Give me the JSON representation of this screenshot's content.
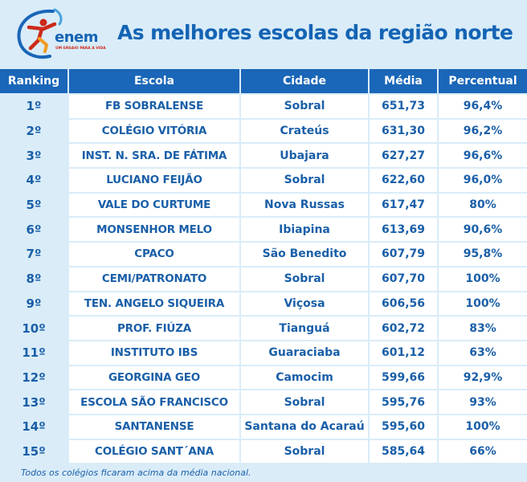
{
  "logo": {
    "icon": "enem-swoosh-figure-logo",
    "name": "enem",
    "tagline": "UM ENSAIO PARA A VIDA"
  },
  "title": "As melhores escolas da região norte",
  "table": {
    "headers": [
      "Ranking",
      "Escola",
      "Cidade",
      "Média",
      "Percentual"
    ],
    "rows": [
      [
        "1º",
        "FB SOBRALENSE",
        "Sobral",
        "651,73",
        "96,4%"
      ],
      [
        "2º",
        "COLÉGIO VITÓRIA",
        "Crateús",
        "631,30",
        "96,2%"
      ],
      [
        "3º",
        "INST. N. SRA. DE FÁTIMA",
        "Ubajara",
        "627,27",
        "96,6%"
      ],
      [
        "4º",
        "LUCIANO FEIJÃO",
        "Sobral",
        "622,60",
        "96,0%"
      ],
      [
        "5º",
        "VALE DO CURTUME",
        "Nova Russas",
        "617,47",
        "80%"
      ],
      [
        "6º",
        "MONSENHOR MELO",
        "Ibiapina",
        "613,69",
        "90,6%"
      ],
      [
        "7º",
        "CPACO",
        "São Benedito",
        "607,79",
        "95,8%"
      ],
      [
        "8º",
        "CEMI/PATRONATO",
        "Sobral",
        "607,70",
        "100%"
      ],
      [
        "9º",
        "TEN. ANGELO SIQUEIRA",
        "Viçosa",
        "606,56",
        "100%"
      ],
      [
        "10º",
        "PROF. FIÚZA",
        "Tianguá",
        "602,72",
        "83%"
      ],
      [
        "11º",
        "INSTITUTO IBS",
        "Guaraciaba",
        "601,12",
        "63%"
      ],
      [
        "12º",
        "GEORGINA GEO",
        "Camocim",
        "599,66",
        "92,9%"
      ],
      [
        "13º",
        "ESCOLA SÃO FRANCISCO",
        "Sobral",
        "595,76",
        "93%"
      ],
      [
        "14º",
        "SANTANENSE",
        "Santana do Acaraú",
        "595,60",
        "100%"
      ],
      [
        "15º",
        "COLÉGIO SANT´ANA",
        "Sobral",
        "585,64",
        "66%"
      ]
    ]
  },
  "footnote": "Todos os colégios ficaram acima da média nacional.",
  "colors": {
    "header_bg": "#1a66b8",
    "text_blue": "#1a5fa8",
    "page_bg": "#d9ecf8",
    "logo_red": "#cc2a1a",
    "logo_orange": "#f39a1e"
  }
}
